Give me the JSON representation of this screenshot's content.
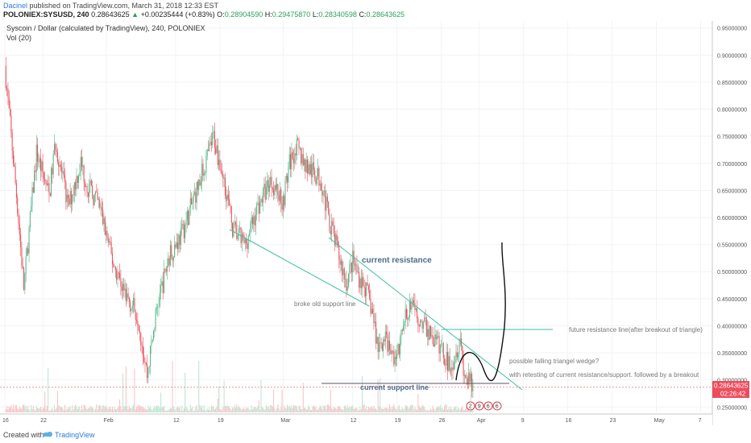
{
  "header": {
    "author": "Dacinel",
    "published": "published on TradingView.com, March 31, 2018 12:33 EST",
    "symbol": "POLONIEX:SYSUSD, 240",
    "price": "0.28643625",
    "arrow": "▲",
    "change": "+0.00235444 (+0.83%)",
    "o_label": "O:",
    "o_value": "0.28904590",
    "h_label": "H:",
    "h_value": "0.29475870",
    "l_label": "L:",
    "l_value": "0.28340598",
    "c_label": "C:",
    "c_value": "0.28643625"
  },
  "legend": {
    "title": "Syscoin / Dollar (calculated by TradingView), 240, POLONIEX",
    "volume": "Vol (20)"
  },
  "price_badge": {
    "price": "0.28643625",
    "countdown": "02:26:42"
  },
  "footer": {
    "created": "Created with",
    "brand": "TradingView"
  },
  "colors": {
    "up": "#53b987",
    "down": "#eb4d5c",
    "trend": "#3dbfa0",
    "path": "#111111",
    "price_line": "#eb4d5c"
  },
  "chart_data": {
    "type": "candlestick",
    "title": "Syscoin / Dollar (calculated by TradingView), 240, POLONIEX",
    "ylim": [
      0.24,
      0.96
    ],
    "y_ticks": [
      "0.95000000",
      "0.90000000",
      "0.85000000",
      "0.80000000",
      "0.75000000",
      "0.70000000",
      "0.65000000",
      "0.60000000",
      "0.55000000",
      "0.50000000",
      "0.45000000",
      "0.40000000",
      "0.35000000",
      "0.30000000",
      "0.25000000"
    ],
    "x_ticks": [
      "16",
      "22",
      "Feb",
      "12",
      "19",
      "Mar",
      "12",
      "19",
      "26",
      "Apr",
      "9",
      "16",
      "23",
      "May",
      "7"
    ],
    "anchors": [
      {
        "d": 0,
        "v": 0.88
      },
      {
        "d": 2,
        "v": 0.62
      },
      {
        "d": 3,
        "v": 0.47
      },
      {
        "d": 5,
        "v": 0.72
      },
      {
        "d": 7,
        "v": 0.64
      },
      {
        "d": 8,
        "v": 0.74
      },
      {
        "d": 10,
        "v": 0.62
      },
      {
        "d": 12,
        "v": 0.7
      },
      {
        "d": 13,
        "v": 0.66
      },
      {
        "d": 15,
        "v": 0.62
      },
      {
        "d": 17,
        "v": 0.52
      },
      {
        "d": 19,
        "v": 0.46
      },
      {
        "d": 21,
        "v": 0.42
      },
      {
        "d": 22.5,
        "v": 0.31
      },
      {
        "d": 24,
        "v": 0.43
      },
      {
        "d": 26,
        "v": 0.53
      },
      {
        "d": 28,
        "v": 0.57
      },
      {
        "d": 30,
        "v": 0.64
      },
      {
        "d": 32,
        "v": 0.71
      },
      {
        "d": 33,
        "v": 0.75
      },
      {
        "d": 34,
        "v": 0.7
      },
      {
        "d": 35,
        "v": 0.65
      },
      {
        "d": 36,
        "v": 0.58
      },
      {
        "d": 38,
        "v": 0.55
      },
      {
        "d": 40,
        "v": 0.62
      },
      {
        "d": 42,
        "v": 0.67
      },
      {
        "d": 44,
        "v": 0.63
      },
      {
        "d": 45,
        "v": 0.7
      },
      {
        "d": 46,
        "v": 0.73
      },
      {
        "d": 48,
        "v": 0.69
      },
      {
        "d": 50,
        "v": 0.67
      },
      {
        "d": 51,
        "v": 0.61
      },
      {
        "d": 53,
        "v": 0.52
      },
      {
        "d": 54,
        "v": 0.48
      },
      {
        "d": 55,
        "v": 0.52
      },
      {
        "d": 56,
        "v": 0.49
      },
      {
        "d": 57,
        "v": 0.47
      },
      {
        "d": 58,
        "v": 0.43
      },
      {
        "d": 59,
        "v": 0.36
      },
      {
        "d": 60,
        "v": 0.38
      },
      {
        "d": 61,
        "v": 0.35
      },
      {
        "d": 62,
        "v": 0.34
      },
      {
        "d": 63,
        "v": 0.4
      },
      {
        "d": 64,
        "v": 0.44
      },
      {
        "d": 65,
        "v": 0.42
      },
      {
        "d": 67,
        "v": 0.39
      },
      {
        "d": 68,
        "v": 0.37
      },
      {
        "d": 69,
        "v": 0.36
      },
      {
        "d": 70,
        "v": 0.33
      },
      {
        "d": 71,
        "v": 0.34
      },
      {
        "d": 72,
        "v": 0.38
      },
      {
        "d": 72.5,
        "v": 0.32
      },
      {
        "d": 73,
        "v": 0.3
      },
      {
        "d": 74,
        "v": 0.287
      }
    ],
    "price_line": 0.2864,
    "annotations": {
      "resistance": "current resistance",
      "support": "current support line",
      "broke": "broke old support line",
      "future": "future resistance line(after breakout of triangle)",
      "wedge1": "possible falling triangel wedge?",
      "wedge2": "with retesting of current resistance/support. followed by a breakout"
    },
    "event_badges": [
      "2",
      "9",
      "6",
      "6"
    ]
  }
}
